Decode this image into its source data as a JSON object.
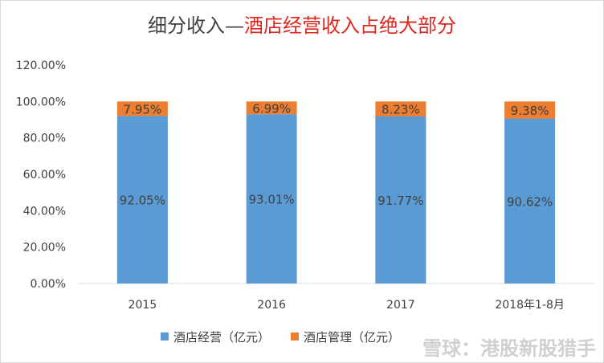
{
  "chart_data": {
    "type": "bar",
    "stacked": true,
    "title_part1": "细分收入—",
    "title_part2": "酒店经营收入占绝大部分",
    "categories": [
      "2015",
      "2016",
      "2017",
      "2018年1-8月"
    ],
    "series": [
      {
        "name": "酒店经营（亿元）",
        "color": "#5b9bd5",
        "values": [
          92.05,
          93.01,
          91.77,
          90.62
        ],
        "labels": [
          "92.05%",
          "93.01%",
          "91.77%",
          "90.62%"
        ]
      },
      {
        "name": "酒店管理（亿元）",
        "color": "#ed7d31",
        "values": [
          7.95,
          6.99,
          8.23,
          9.38
        ],
        "labels": [
          "7.95%",
          "6.99%",
          "8.23%",
          "9.38%"
        ]
      }
    ],
    "y_ticks": [
      "0.00%",
      "20.00%",
      "40.00%",
      "60.00%",
      "80.00%",
      "100.00%",
      "120.00%"
    ],
    "ylim": [
      0,
      120
    ],
    "grid": false,
    "legend_position": "bottom"
  },
  "watermark": "雪球：港股新股猎手"
}
